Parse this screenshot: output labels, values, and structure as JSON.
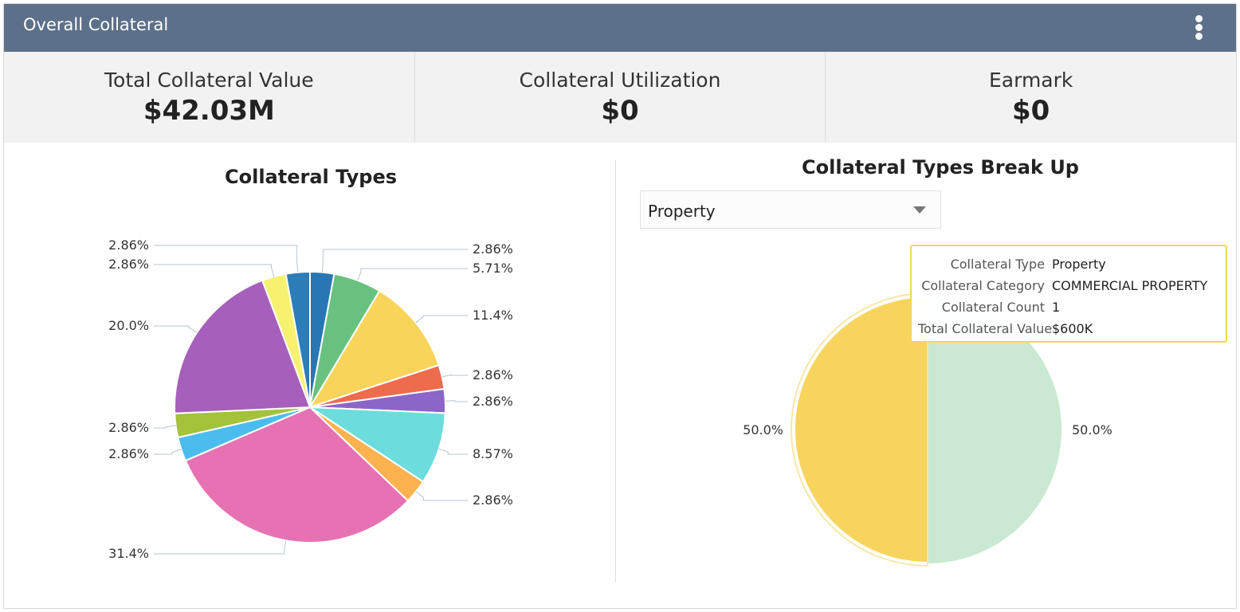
{
  "header": {
    "title": "Overall Collateral",
    "menu_icon": "kebab-menu-icon"
  },
  "kpis": [
    {
      "label": "Total Collateral Value",
      "value": "$42.03M"
    },
    {
      "label": "Collateral Utilization",
      "value": "$0"
    },
    {
      "label": "Earmark",
      "value": "$0"
    }
  ],
  "chart_data": [
    {
      "type": "pie",
      "title": "Collateral Types",
      "slices": [
        {
          "value": 2.86,
          "label": "2.86%",
          "color": "#2877b4"
        },
        {
          "value": 5.71,
          "label": "5.71%",
          "color": "#69c17f"
        },
        {
          "value": 11.4,
          "label": "11.4%",
          "color": "#f9d45b"
        },
        {
          "value": 2.86,
          "label": "2.86%",
          "color": "#ee6b4d"
        },
        {
          "value": 2.86,
          "label": "2.86%",
          "color": "#8c65c8"
        },
        {
          "value": 8.57,
          "label": "8.57%",
          "color": "#6ddcdc"
        },
        {
          "value": 2.86,
          "label": "2.86%",
          "color": "#fdb24f"
        },
        {
          "value": 31.4,
          "label": "31.4%",
          "color": "#e672b3"
        },
        {
          "value": 2.86,
          "label": "2.86%",
          "color": "#4bbcee"
        },
        {
          "value": 2.86,
          "label": "2.86%",
          "color": "#a4c23a"
        },
        {
          "value": 20.0,
          "label": "20.0%",
          "color": "#a65fba"
        },
        {
          "value": 2.86,
          "label": "2.86%",
          "color": "#f6f26f"
        },
        {
          "value": 2.86,
          "label": "2.86%",
          "color": "#2c7db8"
        }
      ]
    },
    {
      "type": "pie",
      "title": "Collateral Types Break Up",
      "slices": [
        {
          "value": 50.0,
          "label": "50.0%",
          "color": "#c9e9d2",
          "label_color": "#aaaaaa"
        },
        {
          "value": 50.0,
          "label": "50.0%",
          "color": "#f7d45d",
          "label_color": "#333333"
        }
      ]
    }
  ],
  "breakup_select": {
    "value": "Property"
  },
  "tooltip": {
    "rows": [
      {
        "key": "Collateral Type",
        "value": "Property"
      },
      {
        "key": "Collateral Category",
        "value": "COMMERCIAL PROPERTY"
      },
      {
        "key": "Collateral Count",
        "value": "1"
      },
      {
        "key": "Total Collateral Value",
        "value": "$600K"
      }
    ]
  }
}
